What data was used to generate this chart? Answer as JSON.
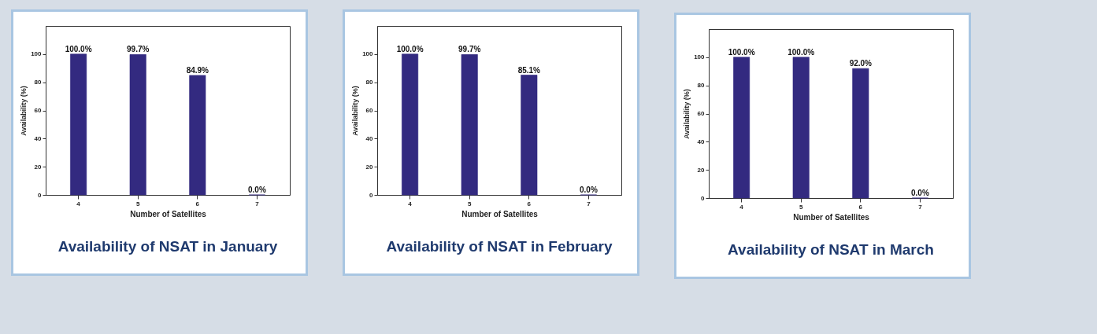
{
  "chart_data": [
    {
      "type": "bar",
      "title": "Availability of NSAT in January",
      "xlabel": "Number of Satellites",
      "ylabel": "Availability (%)",
      "categories": [
        "4",
        "5",
        "6",
        "7"
      ],
      "values": [
        100.0,
        99.7,
        84.9,
        0.0
      ],
      "value_labels": [
        "100.0%",
        "99.7%",
        "84.9%",
        "0.0%"
      ],
      "color": "#332a80",
      "ylim": [
        0,
        120
      ],
      "yticks": [
        0,
        20,
        40,
        60,
        80,
        100
      ],
      "grid": false
    },
    {
      "type": "bar",
      "title": "Availability of NSAT in February",
      "xlabel": "Number of Satellites",
      "ylabel": "Availability (%)",
      "categories": [
        "4",
        "5",
        "6",
        "7"
      ],
      "values": [
        100.0,
        99.7,
        85.1,
        0.0
      ],
      "value_labels": [
        "100.0%",
        "99.7%",
        "85.1%",
        "0.0%"
      ],
      "color": "#332a80",
      "ylim": [
        0,
        120
      ],
      "yticks": [
        0,
        20,
        40,
        60,
        80,
        100
      ],
      "grid": false
    },
    {
      "type": "bar",
      "title": "Availability of NSAT in March",
      "xlabel": "Number of Satellites",
      "ylabel": "Availability (%)",
      "categories": [
        "4",
        "5",
        "6",
        "7"
      ],
      "values": [
        100.0,
        100.0,
        92.0,
        0.0
      ],
      "value_labels": [
        "100.0%",
        "100.0%",
        "92.0%",
        "0.0%"
      ],
      "color": "#332a80",
      "ylim": [
        0,
        120
      ],
      "yticks": [
        0,
        20,
        40,
        60,
        80,
        100
      ],
      "grid": false
    }
  ]
}
